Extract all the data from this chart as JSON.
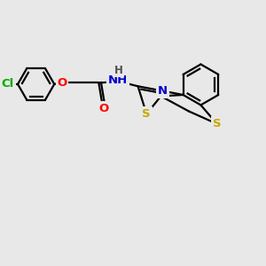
{
  "bg_color": "#e8e8e8",
  "bond_color": "#000000",
  "bond_width": 1.6,
  "atom_colors": {
    "S": "#c8a800",
    "N": "#0000cc",
    "O": "#ff0000",
    "Cl": "#00aa00",
    "C": "#000000",
    "H": "#505050"
  },
  "font_size": 9.5,
  "figsize": [
    3.0,
    3.0
  ],
  "dpi": 100
}
